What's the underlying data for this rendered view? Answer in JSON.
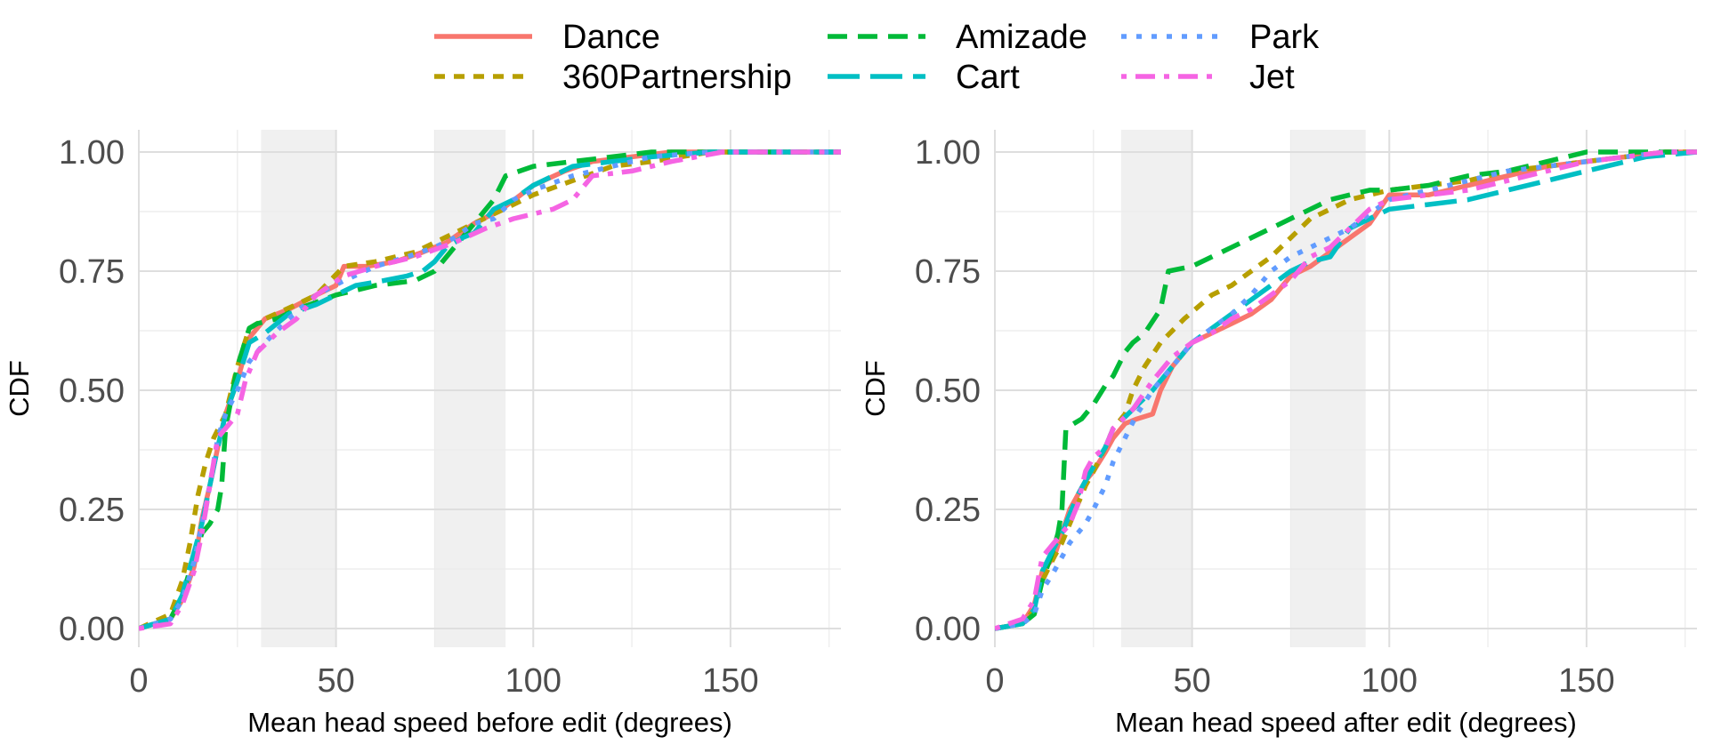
{
  "legend": {
    "position": "top",
    "entries": [
      {
        "name": "Dance",
        "color": "#F8766D",
        "dash": "solid"
      },
      {
        "name": "360Partnership",
        "color": "#B79F00",
        "dash": "dotted"
      },
      {
        "name": "Amizade",
        "color": "#00BA38",
        "dash": "dashed"
      },
      {
        "name": "Cart",
        "color": "#00BFC4",
        "dash": "longdash"
      },
      {
        "name": "Park",
        "color": "#619CFF",
        "dash": "dot"
      },
      {
        "name": "Jet",
        "color": "#F564E3",
        "dash": "dotdash"
      }
    ]
  },
  "chart_data": [
    {
      "type": "line",
      "xlabel": "Mean head speed before edit (degrees)",
      "ylabel": "CDF",
      "xlim": [
        0,
        178
      ],
      "ylim": [
        0,
        1
      ],
      "xticks": [
        0,
        50,
        100,
        150
      ],
      "yticks": [
        0,
        0.25,
        0.5,
        0.75,
        1
      ],
      "ytick_labels": [
        "0.00",
        "0.25",
        "0.50",
        "0.75",
        "1.00"
      ],
      "grid": true,
      "shaded_bands": [
        [
          31,
          50
        ],
        [
          75,
          93
        ]
      ],
      "series": [
        {
          "name": "Dance",
          "x": [
            0,
            8,
            11,
            14,
            16,
            18,
            20,
            22,
            25,
            28,
            32,
            38,
            45,
            50,
            52,
            58,
            65,
            72,
            78,
            85,
            92,
            100,
            108,
            115,
            125,
            135,
            150,
            178
          ],
          "y": [
            0,
            0.02,
            0.06,
            0.13,
            0.23,
            0.3,
            0.38,
            0.45,
            0.52,
            0.61,
            0.65,
            0.67,
            0.7,
            0.72,
            0.76,
            0.76,
            0.77,
            0.79,
            0.81,
            0.85,
            0.88,
            0.93,
            0.96,
            0.98,
            0.99,
            1.0,
            1.0,
            1.0
          ]
        },
        {
          "name": "360Partnership",
          "x": [
            0,
            8,
            11,
            13,
            15,
            17,
            19,
            22,
            25,
            28,
            32,
            40,
            45,
            52,
            60,
            70,
            80,
            90,
            100,
            110,
            120,
            130,
            145,
            178
          ],
          "y": [
            0,
            0.03,
            0.1,
            0.18,
            0.28,
            0.35,
            0.4,
            0.45,
            0.55,
            0.63,
            0.65,
            0.68,
            0.7,
            0.76,
            0.77,
            0.79,
            0.83,
            0.87,
            0.91,
            0.94,
            0.97,
            0.98,
            1.0,
            1.0
          ]
        },
        {
          "name": "Amizade",
          "x": [
            0,
            8,
            11,
            14,
            16,
            18,
            20,
            21,
            22,
            25,
            28,
            30,
            35,
            40,
            50,
            60,
            70,
            75,
            80,
            85,
            90,
            93,
            100,
            110,
            120,
            130,
            140,
            178
          ],
          "y": [
            0,
            0.02,
            0.07,
            0.15,
            0.2,
            0.22,
            0.25,
            0.3,
            0.42,
            0.55,
            0.63,
            0.64,
            0.65,
            0.67,
            0.7,
            0.72,
            0.73,
            0.75,
            0.8,
            0.85,
            0.9,
            0.95,
            0.97,
            0.98,
            0.99,
            1.0,
            1.0,
            1.0
          ]
        },
        {
          "name": "Cart",
          "x": [
            0,
            8,
            11,
            14,
            16,
            18,
            20,
            22,
            25,
            28,
            32,
            38,
            45,
            55,
            62,
            68,
            72,
            75,
            78,
            82,
            85,
            90,
            95,
            100,
            110,
            120,
            130,
            145,
            178
          ],
          "y": [
            0,
            0.02,
            0.07,
            0.16,
            0.22,
            0.3,
            0.38,
            0.45,
            0.52,
            0.6,
            0.62,
            0.66,
            0.68,
            0.72,
            0.73,
            0.74,
            0.75,
            0.77,
            0.8,
            0.82,
            0.83,
            0.88,
            0.9,
            0.93,
            0.97,
            0.98,
            0.99,
            1.0,
            1.0
          ]
        },
        {
          "name": "Park",
          "x": [
            0,
            8,
            11,
            14,
            16,
            18,
            20,
            22,
            25,
            28,
            32,
            38,
            45,
            52,
            60,
            68,
            75,
            80,
            85,
            90,
            95,
            100,
            110,
            120,
            130,
            145,
            178
          ],
          "y": [
            0,
            0.02,
            0.06,
            0.14,
            0.22,
            0.3,
            0.4,
            0.45,
            0.5,
            0.56,
            0.6,
            0.65,
            0.7,
            0.73,
            0.76,
            0.78,
            0.8,
            0.82,
            0.85,
            0.86,
            0.9,
            0.92,
            0.95,
            0.97,
            0.99,
            1.0,
            1.0
          ]
        },
        {
          "name": "Jet",
          "x": [
            0,
            8,
            11,
            14,
            16,
            18,
            20,
            22,
            25,
            27,
            30,
            35,
            40,
            45,
            52,
            60,
            70,
            80,
            88,
            95,
            100,
            105,
            110,
            115,
            125,
            135,
            148,
            178
          ],
          "y": [
            0,
            0.01,
            0.05,
            0.12,
            0.2,
            0.3,
            0.4,
            0.42,
            0.45,
            0.52,
            0.58,
            0.62,
            0.65,
            0.7,
            0.74,
            0.76,
            0.78,
            0.81,
            0.84,
            0.86,
            0.87,
            0.88,
            0.9,
            0.95,
            0.96,
            0.98,
            1.0,
            1.0
          ]
        }
      ]
    },
    {
      "type": "line",
      "xlabel": "Mean head speed after edit (degrees)",
      "ylabel": "CDF",
      "xlim": [
        0,
        178
      ],
      "ylim": [
        0,
        1
      ],
      "xticks": [
        0,
        50,
        100,
        150
      ],
      "yticks": [
        0,
        0.25,
        0.5,
        0.75,
        1
      ],
      "ytick_labels": [
        "0.00",
        "0.25",
        "0.50",
        "0.75",
        "1.00"
      ],
      "grid": true,
      "shaded_bands": [
        [
          32,
          50
        ],
        [
          75,
          94
        ]
      ],
      "series": [
        {
          "name": "Dance",
          "x": [
            0,
            7,
            10,
            12,
            15,
            17,
            19,
            21,
            23,
            25,
            28,
            30,
            33,
            36,
            40,
            42,
            45,
            50,
            55,
            60,
            65,
            70,
            75,
            80,
            85,
            90,
            95,
            100,
            110,
            120,
            130,
            140,
            150,
            170,
            178
          ],
          "y": [
            0,
            0.01,
            0.05,
            0.12,
            0.15,
            0.2,
            0.25,
            0.28,
            0.31,
            0.33,
            0.37,
            0.4,
            0.43,
            0.44,
            0.45,
            0.5,
            0.55,
            0.6,
            0.62,
            0.64,
            0.66,
            0.69,
            0.74,
            0.76,
            0.79,
            0.82,
            0.85,
            0.91,
            0.91,
            0.93,
            0.95,
            0.97,
            0.98,
            1.0,
            1.0
          ]
        },
        {
          "name": "360Partnership",
          "x": [
            0,
            7,
            10,
            12,
            15,
            17,
            19,
            21,
            23,
            25,
            28,
            30,
            33,
            35,
            38,
            42,
            48,
            55,
            60,
            65,
            70,
            75,
            80,
            85,
            90,
            95,
            100,
            110,
            120,
            130,
            140,
            150,
            170,
            178
          ],
          "y": [
            0,
            0.01,
            0.04,
            0.1,
            0.15,
            0.18,
            0.22,
            0.26,
            0.3,
            0.33,
            0.38,
            0.42,
            0.45,
            0.5,
            0.55,
            0.6,
            0.65,
            0.7,
            0.72,
            0.75,
            0.78,
            0.82,
            0.86,
            0.88,
            0.9,
            0.91,
            0.92,
            0.93,
            0.94,
            0.96,
            0.97,
            0.98,
            1.0,
            1.0
          ]
        },
        {
          "name": "Amizade",
          "x": [
            0,
            7,
            10,
            12,
            15,
            16,
            17,
            18,
            20,
            22,
            25,
            28,
            30,
            33,
            35,
            38,
            42,
            44,
            50,
            55,
            60,
            65,
            70,
            75,
            80,
            85,
            90,
            95,
            100,
            110,
            120,
            130,
            140,
            150,
            165,
            178
          ],
          "y": [
            0,
            0.01,
            0.03,
            0.1,
            0.17,
            0.2,
            0.25,
            0.42,
            0.43,
            0.44,
            0.47,
            0.51,
            0.53,
            0.58,
            0.6,
            0.62,
            0.67,
            0.75,
            0.76,
            0.78,
            0.8,
            0.82,
            0.84,
            0.86,
            0.88,
            0.9,
            0.91,
            0.92,
            0.92,
            0.93,
            0.95,
            0.96,
            0.98,
            1.0,
            1.0,
            1.0
          ]
        },
        {
          "name": "Cart",
          "x": [
            0,
            7,
            10,
            12,
            15,
            17,
            19,
            21,
            23,
            25,
            28,
            30,
            35,
            40,
            45,
            50,
            55,
            60,
            65,
            70,
            75,
            80,
            85,
            90,
            95,
            100,
            110,
            120,
            130,
            140,
            150,
            165,
            178
          ],
          "y": [
            0,
            0.01,
            0.04,
            0.12,
            0.17,
            0.2,
            0.24,
            0.28,
            0.31,
            0.34,
            0.38,
            0.42,
            0.46,
            0.5,
            0.55,
            0.6,
            0.63,
            0.66,
            0.69,
            0.72,
            0.75,
            0.77,
            0.78,
            0.84,
            0.86,
            0.88,
            0.89,
            0.9,
            0.92,
            0.94,
            0.96,
            0.99,
            1.0
          ]
        },
        {
          "name": "Park",
          "x": [
            0,
            7,
            10,
            12,
            15,
            17,
            19,
            21,
            23,
            25,
            28,
            30,
            33,
            36,
            40,
            45,
            50,
            55,
            60,
            65,
            70,
            75,
            80,
            85,
            90,
            95,
            100,
            110,
            120,
            130,
            140,
            150,
            170,
            178
          ],
          "y": [
            0,
            0.01,
            0.03,
            0.08,
            0.12,
            0.15,
            0.18,
            0.2,
            0.22,
            0.25,
            0.3,
            0.35,
            0.4,
            0.45,
            0.5,
            0.55,
            0.6,
            0.63,
            0.66,
            0.7,
            0.75,
            0.78,
            0.8,
            0.82,
            0.84,
            0.87,
            0.9,
            0.92,
            0.94,
            0.96,
            0.97,
            0.98,
            1.0,
            1.0
          ]
        },
        {
          "name": "Jet",
          "x": [
            0,
            7,
            10,
            12,
            15,
            17,
            19,
            21,
            23,
            25,
            28,
            30,
            35,
            40,
            45,
            50,
            55,
            60,
            65,
            70,
            75,
            80,
            85,
            90,
            95,
            100,
            110,
            120,
            130,
            140,
            150,
            170,
            178
          ],
          "y": [
            0,
            0.02,
            0.06,
            0.15,
            0.18,
            0.2,
            0.22,
            0.26,
            0.33,
            0.36,
            0.38,
            0.42,
            0.46,
            0.52,
            0.57,
            0.6,
            0.62,
            0.65,
            0.67,
            0.7,
            0.73,
            0.78,
            0.8,
            0.84,
            0.88,
            0.9,
            0.91,
            0.92,
            0.94,
            0.96,
            0.98,
            1.0,
            1.0
          ]
        }
      ]
    }
  ]
}
